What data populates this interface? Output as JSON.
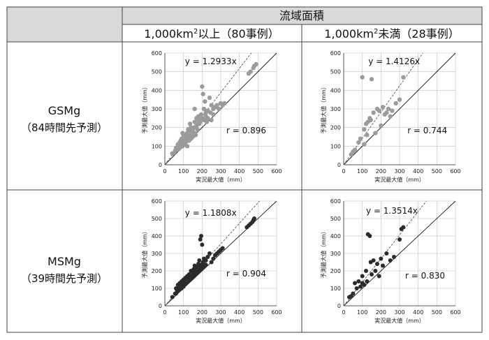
{
  "table": {
    "header_top": "流域面積",
    "col1_header": {
      "prefix": "1,000km",
      "sup": "2",
      "suffix": "以上（80事例）"
    },
    "col2_header": {
      "prefix": "1,000km",
      "sup": "2",
      "suffix": "未満（28事例）"
    },
    "rows": [
      {
        "name": "GSMg",
        "sub": "（84時間先予測）"
      },
      {
        "name": "MSMg",
        "sub": "（39時間先予測）"
      }
    ]
  },
  "colors": {
    "header_bg": "#d9d9d9",
    "grid": "#bdbdbd",
    "gsm_points": "#9b9b9b",
    "msm_points": "#2b2b2b",
    "line": "#222222"
  },
  "chart_data": [
    {
      "type": "scatter",
      "xlabel": "実況最大値（mm）",
      "ylabel": "予測最大値（mm）",
      "xlim": [
        0,
        600
      ],
      "ylim": [
        0,
        600
      ],
      "xticks": [
        0,
        100,
        200,
        300,
        400,
        500,
        600
      ],
      "yticks": [
        0,
        100,
        200,
        300,
        400,
        500,
        600
      ],
      "grid": true,
      "regression_label": "y = 1.2933x",
      "slope": 1.2933,
      "r_label": "r = 0.896",
      "points": [
        [
          40,
          60
        ],
        [
          55,
          75
        ],
        [
          60,
          90
        ],
        [
          70,
          100
        ],
        [
          75,
          85
        ],
        [
          80,
          110
        ],
        [
          85,
          95
        ],
        [
          90,
          120
        ],
        [
          95,
          100
        ],
        [
          100,
          130
        ],
        [
          105,
          110
        ],
        [
          110,
          120
        ],
        [
          115,
          140
        ],
        [
          120,
          100
        ],
        [
          125,
          150
        ],
        [
          130,
          130
        ],
        [
          135,
          160
        ],
        [
          140,
          140
        ],
        [
          145,
          180
        ],
        [
          150,
          150
        ],
        [
          155,
          200
        ],
        [
          160,
          170
        ],
        [
          165,
          160
        ],
        [
          170,
          210
        ],
        [
          175,
          190
        ],
        [
          180,
          240
        ],
        [
          185,
          220
        ],
        [
          190,
          250
        ],
        [
          195,
          270
        ],
        [
          200,
          420
        ],
        [
          205,
          380
        ],
        [
          210,
          300
        ],
        [
          215,
          340
        ],
        [
          220,
          260
        ],
        [
          225,
          230
        ],
        [
          230,
          250
        ],
        [
          240,
          360
        ],
        [
          245,
          280
        ],
        [
          250,
          240
        ],
        [
          260,
          270
        ],
        [
          270,
          310
        ],
        [
          280,
          320
        ],
        [
          290,
          300
        ],
        [
          300,
          330
        ],
        [
          310,
          320
        ],
        [
          320,
          330
        ],
        [
          110,
          150
        ],
        [
          120,
          170
        ],
        [
          130,
          180
        ],
        [
          140,
          200
        ],
        [
          90,
          140
        ],
        [
          100,
          160
        ],
        [
          95,
          170
        ],
        [
          150,
          190
        ],
        [
          160,
          230
        ],
        [
          170,
          250
        ],
        [
          180,
          260
        ],
        [
          80,
          120
        ],
        [
          70,
          110
        ],
        [
          65,
          80
        ],
        [
          50,
          65
        ],
        [
          85,
          130
        ],
        [
          125,
          190
        ],
        [
          135,
          220
        ],
        [
          145,
          170
        ],
        [
          160,
          300
        ],
        [
          190,
          230
        ],
        [
          200,
          250
        ],
        [
          210,
          240
        ],
        [
          220,
          280
        ],
        [
          230,
          290
        ],
        [
          250,
          320
        ],
        [
          260,
          300
        ],
        [
          450,
          490
        ],
        [
          460,
          500
        ],
        [
          475,
          520
        ],
        [
          480,
          530
        ],
        [
          490,
          540
        ],
        [
          115,
          125
        ],
        [
          105,
          140
        ]
      ]
    },
    {
      "type": "scatter",
      "xlabel": "実況最大値（mm）",
      "ylabel": "予測最大値（mm）",
      "xlim": [
        0,
        600
      ],
      "ylim": [
        0,
        600
      ],
      "xticks": [
        0,
        100,
        200,
        300,
        400,
        500,
        600
      ],
      "yticks": [
        0,
        100,
        200,
        300,
        400,
        500,
        600
      ],
      "grid": true,
      "regression_label": "y = 1.4126x",
      "slope": 1.4126,
      "r_label": "r = 0.744",
      "points": [
        [
          40,
          55
        ],
        [
          50,
          70
        ],
        [
          60,
          80
        ],
        [
          80,
          120
        ],
        [
          90,
          140
        ],
        [
          100,
          470
        ],
        [
          110,
          110
        ],
        [
          120,
          220
        ],
        [
          130,
          230
        ],
        [
          140,
          250
        ],
        [
          145,
          240
        ],
        [
          150,
          460
        ],
        [
          160,
          280
        ],
        [
          170,
          170
        ],
        [
          180,
          300
        ],
        [
          190,
          290
        ],
        [
          200,
          210
        ],
        [
          210,
          310
        ],
        [
          220,
          270
        ],
        [
          230,
          280
        ],
        [
          240,
          300
        ],
        [
          250,
          260
        ],
        [
          260,
          290
        ],
        [
          280,
          330
        ],
        [
          300,
          350
        ],
        [
          320,
          470
        ],
        [
          110,
          190
        ],
        [
          125,
          160
        ]
      ]
    },
    {
      "type": "scatter",
      "xlabel": "実況最大値（mm）",
      "ylabel": "予測最大値（mm）",
      "xlim": [
        0,
        600
      ],
      "ylim": [
        0,
        600
      ],
      "xticks": [
        0,
        100,
        200,
        300,
        400,
        500,
        600
      ],
      "yticks": [
        0,
        100,
        200,
        300,
        400,
        500,
        600
      ],
      "grid": true,
      "regression_label": "y = 1.1808x",
      "slope": 1.1808,
      "r_label": "r = 0.904",
      "points": [
        [
          40,
          50
        ],
        [
          55,
          70
        ],
        [
          60,
          100
        ],
        [
          65,
          90
        ],
        [
          70,
          120
        ],
        [
          75,
          105
        ],
        [
          80,
          130
        ],
        [
          85,
          110
        ],
        [
          90,
          140
        ],
        [
          95,
          120
        ],
        [
          100,
          150
        ],
        [
          105,
          130
        ],
        [
          110,
          160
        ],
        [
          115,
          140
        ],
        [
          120,
          170
        ],
        [
          125,
          150
        ],
        [
          130,
          180
        ],
        [
          135,
          160
        ],
        [
          140,
          200
        ],
        [
          145,
          170
        ],
        [
          150,
          190
        ],
        [
          155,
          210
        ],
        [
          160,
          230
        ],
        [
          165,
          180
        ],
        [
          170,
          220
        ],
        [
          175,
          200
        ],
        [
          180,
          240
        ],
        [
          185,
          260
        ],
        [
          190,
          380
        ],
        [
          195,
          400
        ],
        [
          200,
          350
        ],
        [
          205,
          250
        ],
        [
          210,
          270
        ],
        [
          215,
          230
        ],
        [
          220,
          260
        ],
        [
          230,
          280
        ],
        [
          240,
          300
        ],
        [
          250,
          250
        ],
        [
          260,
          270
        ],
        [
          270,
          290
        ],
        [
          280,
          300
        ],
        [
          290,
          310
        ],
        [
          300,
          320
        ],
        [
          310,
          330
        ],
        [
          100,
          110
        ],
        [
          90,
          100
        ],
        [
          80,
          95
        ],
        [
          70,
          85
        ],
        [
          110,
          125
        ],
        [
          120,
          135
        ],
        [
          130,
          145
        ],
        [
          140,
          155
        ],
        [
          150,
          165
        ],
        [
          160,
          175
        ],
        [
          170,
          185
        ],
        [
          180,
          195
        ],
        [
          190,
          205
        ],
        [
          200,
          215
        ],
        [
          210,
          225
        ],
        [
          220,
          235
        ],
        [
          60,
          70
        ],
        [
          75,
          90
        ],
        [
          85,
          100
        ],
        [
          95,
          115
        ],
        [
          105,
          120
        ],
        [
          115,
          130
        ],
        [
          125,
          140
        ],
        [
          135,
          150
        ],
        [
          145,
          160
        ],
        [
          155,
          170
        ],
        [
          165,
          195
        ],
        [
          175,
          215
        ],
        [
          185,
          225
        ],
        [
          195,
          235
        ],
        [
          440,
          450
        ],
        [
          450,
          460
        ],
        [
          460,
          470
        ],
        [
          470,
          480
        ],
        [
          475,
          490
        ],
        [
          480,
          500
        ]
      ]
    },
    {
      "type": "scatter",
      "xlabel": "実況最大値（mm）",
      "ylabel": "予測最大値（mm）",
      "xlim": [
        0,
        600
      ],
      "ylim": [
        0,
        600
      ],
      "xticks": [
        0,
        100,
        200,
        300,
        400,
        500,
        600
      ],
      "yticks": [
        0,
        100,
        200,
        300,
        400,
        500,
        600
      ],
      "grid": true,
      "regression_label": "y = 1.3514x",
      "slope": 1.3514,
      "r_label": "r = 0.830",
      "points": [
        [
          30,
          50
        ],
        [
          40,
          55
        ],
        [
          50,
          70
        ],
        [
          60,
          130
        ],
        [
          70,
          100
        ],
        [
          80,
          140
        ],
        [
          90,
          110
        ],
        [
          100,
          170
        ],
        [
          110,
          120
        ],
        [
          120,
          200
        ],
        [
          125,
          140
        ],
        [
          130,
          410
        ],
        [
          140,
          400
        ],
        [
          145,
          250
        ],
        [
          150,
          180
        ],
        [
          160,
          260
        ],
        [
          170,
          200
        ],
        [
          180,
          240
        ],
        [
          190,
          170
        ],
        [
          200,
          270
        ],
        [
          210,
          230
        ],
        [
          230,
          300
        ],
        [
          250,
          260
        ],
        [
          270,
          280
        ],
        [
          300,
          380
        ],
        [
          310,
          440
        ],
        [
          320,
          450
        ],
        [
          100,
          130
        ]
      ]
    }
  ]
}
